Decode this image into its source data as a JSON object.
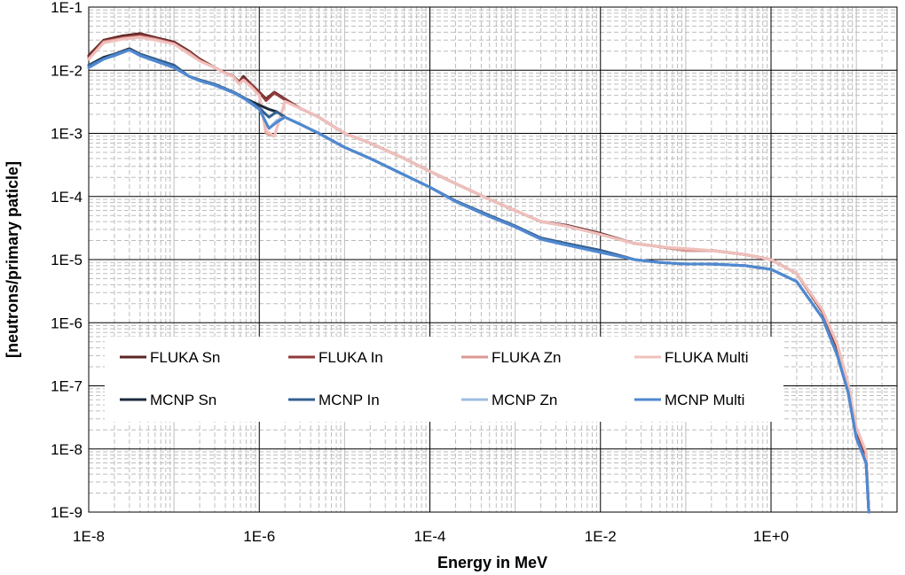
{
  "chart_data": {
    "type": "line",
    "title": "",
    "xlabel": "Energy in MeV",
    "ylabel": "[neutrons/primary paticle]",
    "x_scale": "log",
    "y_scale": "log",
    "xlim": [
      1e-08,
      30
    ],
    "ylim": [
      1e-09,
      0.1
    ],
    "grid": true,
    "legend_position": "lower-center, inside plot",
    "x_tick_labels": [
      "1E-8",
      "1E-6",
      "1E-4",
      "1E-2",
      "1E+0"
    ],
    "y_tick_labels": [
      "1E-1",
      "1E-2",
      "1E-3",
      "1E-4",
      "1E-5",
      "1E-6",
      "1E-7",
      "1E-8",
      "1E-9"
    ],
    "series": [
      {
        "name": "FLUKA Sn",
        "color": "#5b2424",
        "x": [
          1e-08,
          1.5e-08,
          2.5e-08,
          4e-08,
          6e-08,
          1e-07,
          1.5e-07,
          2e-07,
          3e-07,
          4e-07,
          5e-07,
          5.8e-07,
          6.5e-07,
          8e-07,
          1e-06,
          1.2e-06,
          1.5e-06,
          2e-06,
          3e-06,
          5e-06,
          1e-05,
          2e-05,
          5e-05,
          0.0001,
          0.0002,
          0.0005,
          0.001,
          0.002,
          0.004,
          0.01,
          0.025,
          0.05,
          0.1,
          0.2,
          0.5,
          1,
          2,
          4,
          6,
          8,
          10,
          13,
          14
        ],
        "values": [
          0.017,
          0.03,
          0.035,
          0.038,
          0.033,
          0.028,
          0.02,
          0.015,
          0.011,
          0.009,
          0.008,
          0.0065,
          0.008,
          0.006,
          0.0045,
          0.0035,
          0.0045,
          0.0035,
          0.0025,
          0.0018,
          0.001,
          0.0007,
          0.0004,
          0.00025,
          0.00016,
          9e-05,
          6e-05,
          4e-05,
          3.5e-05,
          2.6e-05,
          1.8e-05,
          1.6e-05,
          1.4e-05,
          1.4e-05,
          1.2e-05,
          1e-05,
          6e-06,
          1.5e-06,
          4e-07,
          1e-07,
          2e-08,
          8e-09,
          1e-09
        ]
      },
      {
        "name": "FLUKA In",
        "color": "#8f3a3a",
        "x": [
          1e-08,
          1.5e-08,
          2.5e-08,
          4e-08,
          6e-08,
          1e-07,
          1.5e-07,
          2e-07,
          3e-07,
          4e-07,
          5e-07,
          5.8e-07,
          6.5e-07,
          8e-07,
          1e-06,
          1.2e-06,
          1.5e-06,
          2e-06,
          3e-06,
          5e-06,
          1e-05,
          2e-05,
          5e-05,
          0.0001,
          0.0002,
          0.0005,
          0.001,
          0.002,
          0.004,
          0.01,
          0.025,
          0.05,
          0.1,
          0.2,
          0.5,
          1,
          2,
          4,
          6,
          8,
          10,
          13,
          14
        ],
        "values": [
          0.016,
          0.029,
          0.033,
          0.036,
          0.032,
          0.027,
          0.019,
          0.015,
          0.011,
          0.009,
          0.008,
          0.0065,
          0.0075,
          0.006,
          0.0045,
          0.0033,
          0.0044,
          0.0034,
          0.0025,
          0.0018,
          0.001,
          0.0007,
          0.0004,
          0.00025,
          0.00016,
          9e-05,
          6e-05,
          4e-05,
          3.4e-05,
          2.5e-05,
          1.8e-05,
          1.6e-05,
          1.4e-05,
          1.4e-05,
          1.2e-05,
          1e-05,
          6e-06,
          1.5e-06,
          4e-07,
          1e-07,
          2e-08,
          8e-09,
          1e-09
        ]
      },
      {
        "name": "FLUKA Zn",
        "color": "#dc9a94",
        "x": [
          1e-08,
          1.5e-08,
          2.5e-08,
          4e-08,
          6e-08,
          1e-07,
          1.5e-07,
          2e-07,
          3e-07,
          4e-07,
          5e-07,
          5.8e-07,
          6.5e-07,
          8e-07,
          1e-06,
          1.2e-06,
          1.5e-06,
          2e-06,
          3e-06,
          5e-06,
          1e-05,
          2e-05,
          5e-05,
          0.0001,
          0.0002,
          0.0005,
          0.001,
          0.002,
          0.004,
          0.01,
          0.025,
          0.05,
          0.1,
          0.2,
          0.5,
          1,
          2,
          4,
          6,
          8,
          10,
          13,
          14
        ],
        "values": [
          0.015,
          0.028,
          0.032,
          0.034,
          0.031,
          0.026,
          0.019,
          0.014,
          0.011,
          0.009,
          0.008,
          0.0062,
          0.007,
          0.0055,
          0.004,
          0.001,
          0.0009,
          0.0032,
          0.0025,
          0.0018,
          0.001,
          0.0007,
          0.0004,
          0.00025,
          0.00016,
          9e-05,
          6e-05,
          4e-05,
          3.4e-05,
          2.5e-05,
          1.8e-05,
          1.6e-05,
          1.4e-05,
          1.4e-05,
          1.2e-05,
          1e-05,
          6e-06,
          1.6e-06,
          4.5e-07,
          1.1e-07,
          2.2e-08,
          9e-09,
          1e-09
        ]
      },
      {
        "name": "FLUKA Multi",
        "color": "#f0c0bc",
        "x": [
          1e-08,
          1.5e-08,
          2.5e-08,
          4e-08,
          6e-08,
          1e-07,
          1.5e-07,
          2e-07,
          3e-07,
          4e-07,
          5e-07,
          5.8e-07,
          6.5e-07,
          8e-07,
          1e-06,
          1.2e-06,
          1.5e-06,
          2e-06,
          3e-06,
          5e-06,
          1e-05,
          2e-05,
          5e-05,
          0.0001,
          0.0002,
          0.0005,
          0.001,
          0.002,
          0.004,
          0.01,
          0.025,
          0.05,
          0.1,
          0.2,
          0.5,
          1,
          2,
          4,
          6,
          8,
          10,
          13,
          14
        ],
        "values": [
          0.015,
          0.027,
          0.031,
          0.033,
          0.03,
          0.026,
          0.018,
          0.014,
          0.011,
          0.0088,
          0.0078,
          0.006,
          0.007,
          0.0055,
          0.004,
          0.0011,
          0.0009,
          0.0032,
          0.0025,
          0.0018,
          0.001,
          0.0007,
          0.0004,
          0.00025,
          0.00016,
          9e-05,
          6e-05,
          4e-05,
          3.4e-05,
          2.5e-05,
          1.8e-05,
          1.6e-05,
          1.5e-05,
          1.4e-05,
          1.2e-05,
          1e-05,
          6e-06,
          1.6e-06,
          4.5e-07,
          1.1e-07,
          2.2e-08,
          9e-09,
          1e-09
        ]
      },
      {
        "name": "MCNP Sn",
        "color": "#1b2a3e",
        "x": [
          1e-08,
          1.5e-08,
          2e-08,
          3e-08,
          4e-08,
          6e-08,
          1e-07,
          1.5e-07,
          2e-07,
          3e-07,
          5e-07,
          7e-07,
          1e-06,
          1.3e-06,
          1.6e-06,
          2e-06,
          3e-06,
          5e-06,
          1e-05,
          2e-05,
          5e-05,
          0.0001,
          0.0002,
          0.0005,
          0.001,
          0.002,
          0.004,
          0.01,
          0.025,
          0.05,
          0.1,
          0.2,
          0.5,
          1,
          2,
          4,
          6,
          8,
          10,
          13,
          14
        ],
        "values": [
          0.012,
          0.016,
          0.018,
          0.022,
          0.018,
          0.015,
          0.012,
          0.008,
          0.007,
          0.006,
          0.0045,
          0.0035,
          0.0028,
          0.0024,
          0.0022,
          0.0018,
          0.0014,
          0.001,
          0.0006,
          0.0004,
          0.00022,
          0.00014,
          8.5e-05,
          5e-05,
          3.4e-05,
          2.2e-05,
          1.8e-05,
          1.4e-05,
          1e-05,
          9e-06,
          8.5e-06,
          8.5e-06,
          8e-06,
          7e-06,
          4.5e-06,
          1.2e-06,
          3e-07,
          8e-08,
          1.5e-08,
          6e-09,
          1e-09
        ]
      },
      {
        "name": "MCNP In",
        "color": "#34608f",
        "x": [
          1e-08,
          1.5e-08,
          2e-08,
          3e-08,
          4e-08,
          6e-08,
          1e-07,
          1.5e-07,
          2e-07,
          3e-07,
          5e-07,
          7e-07,
          1e-06,
          1.3e-06,
          1.6e-06,
          2e-06,
          3e-06,
          5e-06,
          1e-05,
          2e-05,
          5e-05,
          0.0001,
          0.0002,
          0.0005,
          0.001,
          0.002,
          0.004,
          0.01,
          0.025,
          0.05,
          0.1,
          0.2,
          0.5,
          1,
          2,
          4,
          6,
          8,
          10,
          13,
          14
        ],
        "values": [
          0.012,
          0.015,
          0.018,
          0.021,
          0.018,
          0.015,
          0.012,
          0.008,
          0.007,
          0.006,
          0.0045,
          0.0035,
          0.0025,
          0.0018,
          0.0022,
          0.0018,
          0.0014,
          0.001,
          0.0006,
          0.0004,
          0.00022,
          0.00014,
          8.5e-05,
          5e-05,
          3.4e-05,
          2.2e-05,
          1.8e-05,
          1.4e-05,
          1e-05,
          9e-06,
          8.5e-06,
          8.5e-06,
          8e-06,
          7e-06,
          4.5e-06,
          1.2e-06,
          3e-07,
          8e-08,
          1.5e-08,
          6e-09,
          1e-09
        ]
      },
      {
        "name": "MCNP Zn",
        "color": "#9fbde3",
        "x": [
          1e-08,
          1.5e-08,
          2e-08,
          3e-08,
          4e-08,
          6e-08,
          1e-07,
          1.5e-07,
          2e-07,
          3e-07,
          5e-07,
          7e-07,
          1e-06,
          1.3e-06,
          1.6e-06,
          2e-06,
          3e-06,
          5e-06,
          1e-05,
          2e-05,
          5e-05,
          0.0001,
          0.0002,
          0.0005,
          0.001,
          0.002,
          0.004,
          0.01,
          0.025,
          0.05,
          0.1,
          0.2,
          0.5,
          1,
          2,
          4,
          6,
          8,
          10,
          13,
          14
        ],
        "values": [
          0.011,
          0.015,
          0.017,
          0.021,
          0.017,
          0.014,
          0.011,
          0.008,
          0.0068,
          0.0058,
          0.0044,
          0.0034,
          0.0024,
          0.0012,
          0.0016,
          0.0018,
          0.0014,
          0.001,
          0.0006,
          0.0004,
          0.00022,
          0.00014,
          8.3e-05,
          4.8e-05,
          3.3e-05,
          2.1e-05,
          1.7e-05,
          1.3e-05,
          1e-05,
          9e-06,
          8.5e-06,
          8.5e-06,
          8e-06,
          7e-06,
          4.5e-06,
          1.2e-06,
          3e-07,
          8e-08,
          1.5e-08,
          6e-09,
          1e-09
        ]
      },
      {
        "name": "MCNP Multi",
        "color": "#4f88d1",
        "x": [
          1e-08,
          1.5e-08,
          2e-08,
          3e-08,
          4e-08,
          6e-08,
          1e-07,
          1.5e-07,
          2e-07,
          3e-07,
          5e-07,
          7e-07,
          1e-06,
          1.3e-06,
          1.6e-06,
          2e-06,
          3e-06,
          5e-06,
          1e-05,
          2e-05,
          5e-05,
          0.0001,
          0.0002,
          0.0005,
          0.001,
          0.002,
          0.004,
          0.01,
          0.025,
          0.05,
          0.1,
          0.2,
          0.5,
          1,
          2,
          4,
          6,
          8,
          10,
          13,
          14
        ],
        "values": [
          0.011,
          0.015,
          0.017,
          0.021,
          0.017,
          0.014,
          0.011,
          0.008,
          0.0068,
          0.0058,
          0.0044,
          0.0034,
          0.0024,
          0.0012,
          0.0015,
          0.0018,
          0.0014,
          0.001,
          0.0006,
          0.0004,
          0.00022,
          0.00014,
          8.3e-05,
          4.8e-05,
          3.3e-05,
          2.1e-05,
          1.7e-05,
          1.3e-05,
          1e-05,
          9e-06,
          8.5e-06,
          8.5e-06,
          8e-06,
          7e-06,
          4.5e-06,
          1.2e-06,
          3e-07,
          8e-08,
          1.5e-08,
          6e-09,
          1e-09
        ]
      }
    ]
  }
}
